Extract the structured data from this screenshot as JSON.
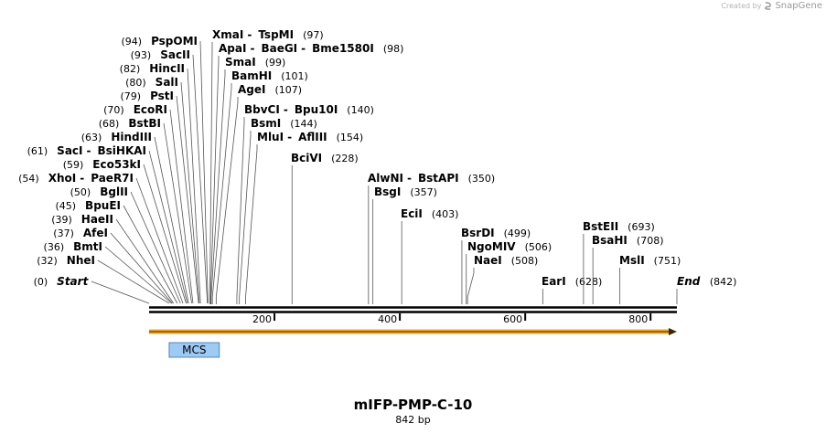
{
  "credit": {
    "prefix": "Created by",
    "brand": "SnapGene"
  },
  "map": {
    "name": "mIFP-PMP-C-10",
    "length_label": "842 bp",
    "length": 842,
    "ticks": [
      {
        "pos": 200,
        "label": "200"
      },
      {
        "pos": 400,
        "label": "400"
      },
      {
        "pos": 600,
        "label": "600"
      },
      {
        "pos": 800,
        "label": "800"
      }
    ],
    "feature": {
      "label": "MCS",
      "start": 32,
      "end": 112,
      "color": "#9dcbf5"
    },
    "arrow_color": "#f5a623"
  },
  "sites": [
    {
      "parts": [
        "PspOMI"
      ],
      "pos": 94,
      "pos_label": "(94)",
      "side": "left"
    },
    {
      "parts": [
        "SacII"
      ],
      "pos": 93,
      "pos_label": "(93)",
      "side": "left"
    },
    {
      "parts": [
        "HincII"
      ],
      "pos": 82,
      "pos_label": "(82)",
      "side": "left"
    },
    {
      "parts": [
        "SalI"
      ],
      "pos": 80,
      "pos_label": "(80)",
      "side": "left"
    },
    {
      "parts": [
        "PstI"
      ],
      "pos": 79,
      "pos_label": "(79)",
      "side": "left"
    },
    {
      "parts": [
        "EcoRI"
      ],
      "pos": 70,
      "pos_label": "(70)",
      "side": "left"
    },
    {
      "parts": [
        "BstBI"
      ],
      "pos": 68,
      "pos_label": "(68)",
      "side": "left"
    },
    {
      "parts": [
        "HindIII"
      ],
      "pos": 63,
      "pos_label": "(63)",
      "side": "left"
    },
    {
      "parts": [
        "SacI",
        "BsiHKAI"
      ],
      "pos": 61,
      "pos_label": "(61)",
      "side": "left"
    },
    {
      "parts": [
        "Eco53kI"
      ],
      "pos": 59,
      "pos_label": "(59)",
      "side": "left"
    },
    {
      "parts": [
        "XhoI",
        "PaeR7I"
      ],
      "pos": 54,
      "pos_label": "(54)",
      "side": "left"
    },
    {
      "parts": [
        "BglII"
      ],
      "pos": 50,
      "pos_label": "(50)",
      "side": "left"
    },
    {
      "parts": [
        "BpuEI"
      ],
      "pos": 45,
      "pos_label": "(45)",
      "side": "left"
    },
    {
      "parts": [
        "HaeII"
      ],
      "pos": 39,
      "pos_label": "(39)",
      "side": "left"
    },
    {
      "parts": [
        "AfeI"
      ],
      "pos": 37,
      "pos_label": "(37)",
      "side": "left"
    },
    {
      "parts": [
        "BmtI"
      ],
      "pos": 36,
      "pos_label": "(36)",
      "side": "left"
    },
    {
      "parts": [
        "NheI"
      ],
      "pos": 32,
      "pos_label": "(32)",
      "side": "left"
    },
    {
      "parts": [
        "Start"
      ],
      "pos": 0,
      "pos_label": "(0)",
      "side": "left",
      "italic": true
    },
    {
      "parts": [
        "XmaI",
        "TspMI"
      ],
      "pos": 97,
      "pos_label": "(97)",
      "side": "right"
    },
    {
      "parts": [
        "ApaI",
        "BaeGI",
        "Bme1580I"
      ],
      "pos": 98,
      "pos_label": "(98)",
      "side": "right"
    },
    {
      "parts": [
        "SmaI"
      ],
      "pos": 99,
      "pos_label": "(99)",
      "side": "right"
    },
    {
      "parts": [
        "BamHI"
      ],
      "pos": 101,
      "pos_label": "(101)",
      "side": "right"
    },
    {
      "parts": [
        "AgeI"
      ],
      "pos": 107,
      "pos_label": "(107)",
      "side": "right"
    },
    {
      "parts": [
        "BbvCI",
        "Bpu10I"
      ],
      "pos": 140,
      "pos_label": "(140)",
      "side": "right"
    },
    {
      "parts": [
        "BsmI"
      ],
      "pos": 144,
      "pos_label": "(144)",
      "side": "right"
    },
    {
      "parts": [
        "MluI",
        "AflIII"
      ],
      "pos": 154,
      "pos_label": "(154)",
      "side": "right"
    },
    {
      "parts": [
        "BciVI"
      ],
      "pos": 228,
      "pos_label": "(228)",
      "side": "right"
    },
    {
      "parts": [
        "AlwNI",
        "BstAPI"
      ],
      "pos": 350,
      "pos_label": "(350)",
      "side": "right"
    },
    {
      "parts": [
        "BsgI"
      ],
      "pos": 357,
      "pos_label": "(357)",
      "side": "right"
    },
    {
      "parts": [
        "EciI"
      ],
      "pos": 403,
      "pos_label": "(403)",
      "side": "right"
    },
    {
      "parts": [
        "BsrDI"
      ],
      "pos": 499,
      "pos_label": "(499)",
      "side": "right"
    },
    {
      "parts": [
        "NgoMIV"
      ],
      "pos": 506,
      "pos_label": "(506)",
      "side": "right"
    },
    {
      "parts": [
        "NaeI"
      ],
      "pos": 508,
      "pos_label": "(508)",
      "side": "right"
    },
    {
      "parts": [
        "EarI"
      ],
      "pos": 628,
      "pos_label": "(628)",
      "side": "right"
    },
    {
      "parts": [
        "BstEII"
      ],
      "pos": 693,
      "pos_label": "(693)",
      "side": "right"
    },
    {
      "parts": [
        "BsaHI"
      ],
      "pos": 708,
      "pos_label": "(708)",
      "side": "right"
    },
    {
      "parts": [
        "MslI"
      ],
      "pos": 751,
      "pos_label": "(751)",
      "side": "right"
    },
    {
      "parts": [
        "End"
      ],
      "pos": 842,
      "pos_label": "(842)",
      "side": "right",
      "italic": true
    }
  ]
}
